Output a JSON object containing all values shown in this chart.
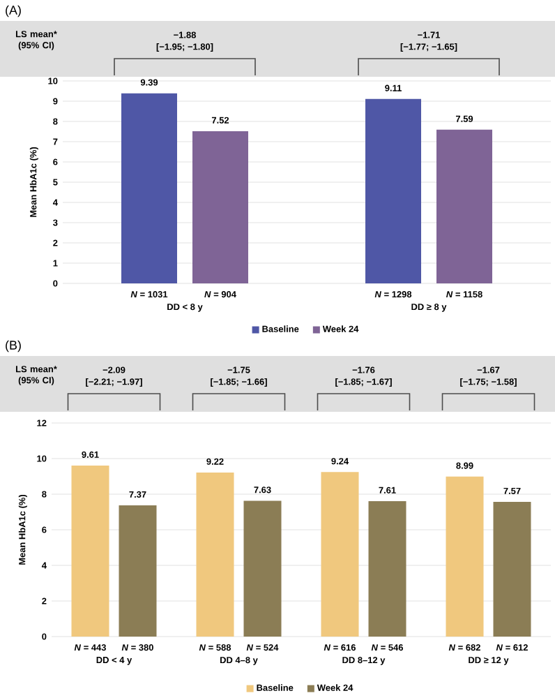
{
  "chart_data": [
    {
      "type": "bar",
      "title": "(A)",
      "ylabel": "Mean HbA1c (%)",
      "categories": [
        "DD < 8 y",
        "DD ≥ 8 y"
      ],
      "series": [
        {
          "name": "Baseline",
          "color": "#4f57a6",
          "values": [
            9.39,
            9.11
          ]
        },
        {
          "name": "Week 24",
          "color": "#7f6496",
          "values": [
            7.52,
            7.59
          ]
        }
      ],
      "ylim": [
        0,
        10
      ],
      "yticks": [
        0,
        1,
        2,
        3,
        4,
        5,
        6,
        7,
        8,
        9,
        10
      ],
      "grid": "y",
      "legend": "bottom",
      "data_labels": true,
      "annotations": [
        "LS mean* (95% CI)",
        "−1.88",
        "[−1.95; −1.80]",
        "−1.71",
        "[−1.77; −1.65]",
        "*N* = 1031",
        "*N* = 904",
        "*N* = 1298",
        "*N* = 1158"
      ]
    },
    {
      "type": "bar",
      "title": "(B)",
      "ylabel": "Mean HbA1c (%)",
      "categories": [
        "DD < 4 y",
        "DD 4–8 y",
        "DD 8–12 y",
        "DD ≥ 12 y"
      ],
      "series": [
        {
          "name": "Baseline",
          "color": "#f0c87e",
          "values": [
            9.61,
            9.22,
            9.24,
            8.99
          ]
        },
        {
          "name": "Week 24",
          "color": "#8b7d55",
          "values": [
            7.37,
            7.63,
            7.61,
            7.57
          ]
        }
      ],
      "ylim": [
        0,
        12
      ],
      "yticks": [
        0,
        2,
        4,
        6,
        8,
        10,
        12
      ],
      "grid": "y",
      "legend": "bottom",
      "data_labels": true,
      "annotations": [
        "LS mean* (95% CI)",
        "−2.09",
        "[−2.21; −1.97]",
        "−1.75",
        "[−1.85; −1.66]",
        "−1.76",
        "[−1.85; −1.67]",
        "−1.67",
        "[−1.75; −1.58]",
        "*N* = 443",
        "*N* = 380",
        "*N* = 588",
        "*N* = 524",
        "*N* = 616",
        "*N* = 546",
        "*N* = 682",
        "*N* = 612"
      ]
    }
  ]
}
